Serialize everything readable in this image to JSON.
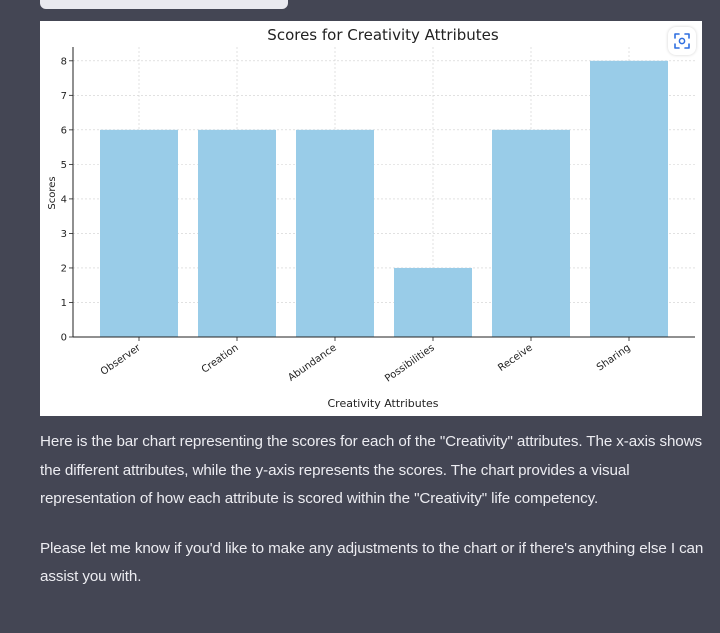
{
  "chart_data": {
    "type": "bar",
    "title": "Scores for Creativity Attributes",
    "xlabel": "Creativity Attributes",
    "ylabel": "Scores",
    "categories": [
      "Observer",
      "Creation",
      "Abundance",
      "Possibilities",
      "Receive",
      "Sharing"
    ],
    "values": [
      6,
      6,
      6,
      2,
      6,
      8
    ],
    "ylim": [
      0,
      8.4
    ],
    "yticks": [
      0,
      1,
      2,
      3,
      4,
      5,
      6,
      7,
      8
    ],
    "grid": true,
    "bar_color": "#99cce8"
  },
  "toolbar": {
    "zoom_icon": "expand-view-icon",
    "accent_color": "#2f6fe0"
  },
  "message": {
    "paragraph_1": "Here is the bar chart representing the scores for each of the \"Creativity\" attributes. The x-axis shows the different attributes, while the y-axis represents the scores. The chart provides a visual representation of how each attribute is scored within the \"Creativity\" life competency.",
    "paragraph_2": "Please let me know if you'd like to make any adjustments to the chart or if there's anything else I can assist you with."
  }
}
